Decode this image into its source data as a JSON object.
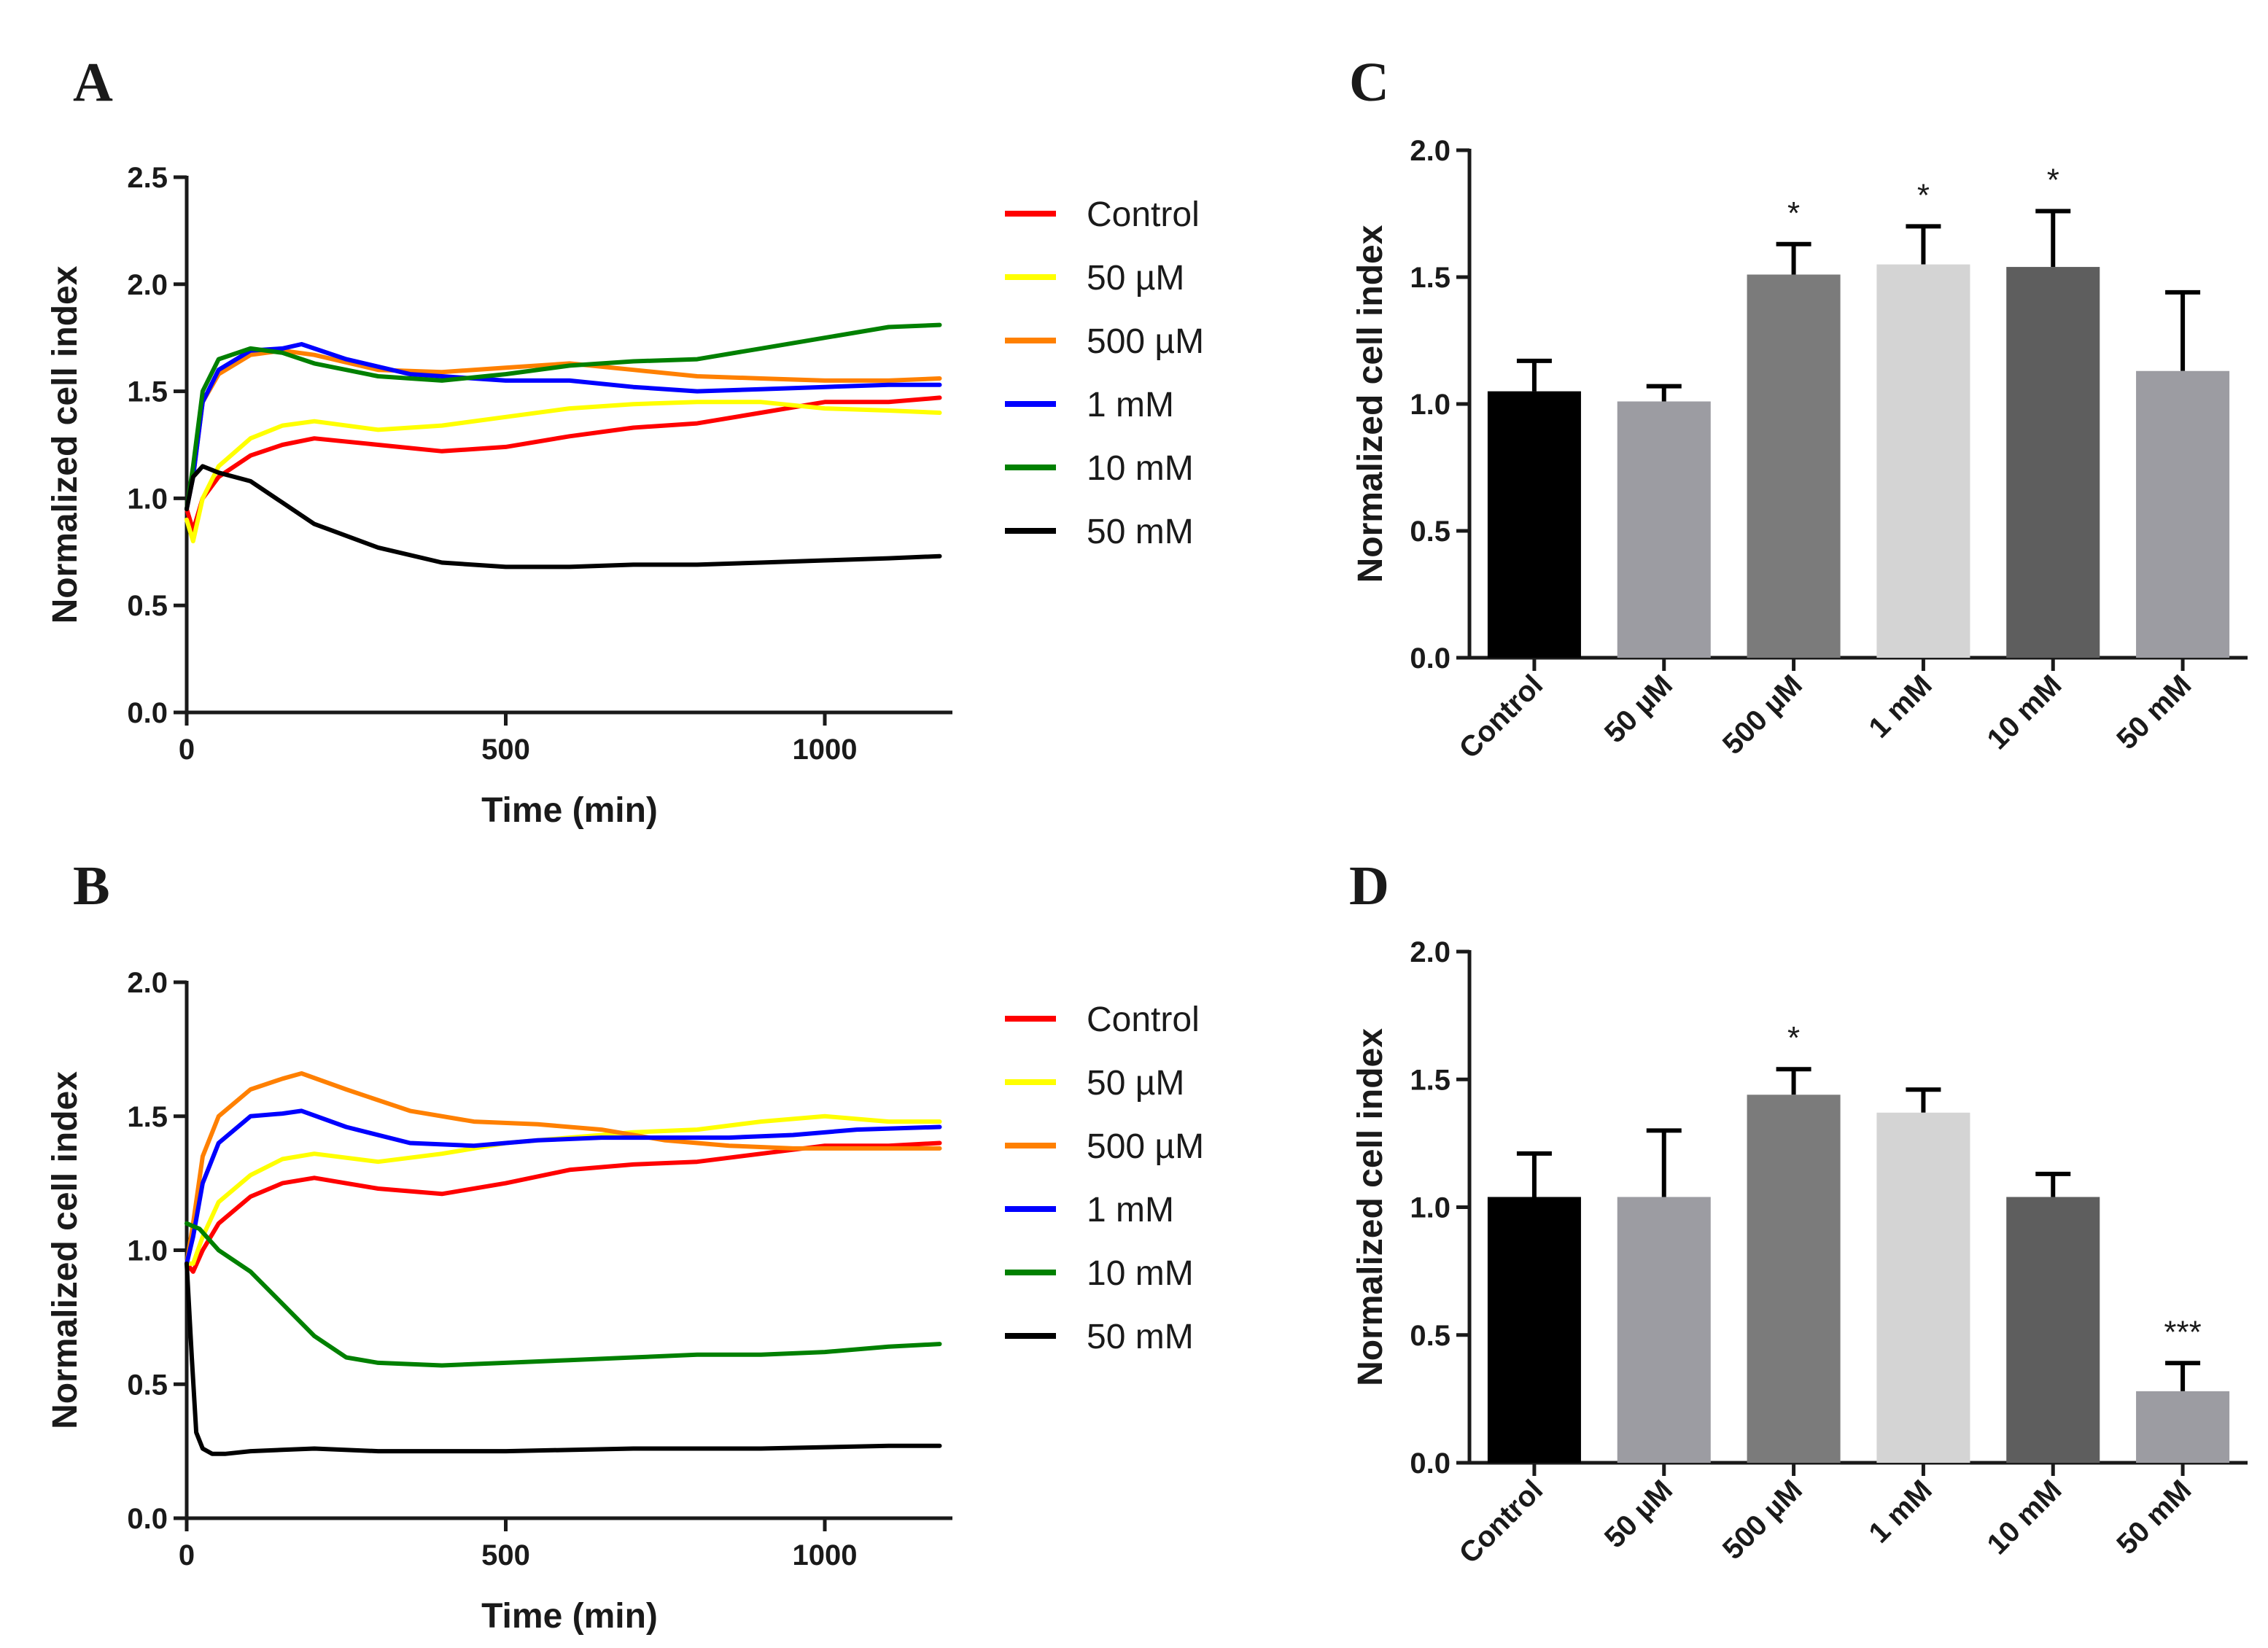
{
  "chart_data": [
    {
      "id": "A",
      "panel_label": "A",
      "type": "line",
      "xlabel": "Time (min)",
      "ylabel": "Normalized cell index",
      "xlim": [
        0,
        1200
      ],
      "ylim": [
        0,
        2.5
      ],
      "xticks": [
        0,
        500,
        1000
      ],
      "yticks": [
        0.0,
        0.5,
        1.0,
        1.5,
        2.0,
        2.5
      ],
      "legend": "right",
      "series": [
        {
          "name": "Control",
          "color": "#ff0000",
          "points": [
            [
              0,
              0.95
            ],
            [
              10,
              0.85
            ],
            [
              25,
              1.0
            ],
            [
              50,
              1.1
            ],
            [
              100,
              1.2
            ],
            [
              150,
              1.25
            ],
            [
              200,
              1.28
            ],
            [
              300,
              1.25
            ],
            [
              400,
              1.22
            ],
            [
              500,
              1.24
            ],
            [
              600,
              1.29
            ],
            [
              700,
              1.33
            ],
            [
              800,
              1.35
            ],
            [
              900,
              1.4
            ],
            [
              1000,
              1.45
            ],
            [
              1100,
              1.45
            ],
            [
              1180,
              1.47
            ]
          ]
        },
        {
          "name": "50 µM",
          "color": "#ffff00",
          "points": [
            [
              0,
              0.9
            ],
            [
              10,
              0.8
            ],
            [
              25,
              1.0
            ],
            [
              50,
              1.15
            ],
            [
              100,
              1.28
            ],
            [
              150,
              1.34
            ],
            [
              200,
              1.36
            ],
            [
              300,
              1.32
            ],
            [
              400,
              1.34
            ],
            [
              500,
              1.38
            ],
            [
              600,
              1.42
            ],
            [
              700,
              1.44
            ],
            [
              800,
              1.45
            ],
            [
              900,
              1.45
            ],
            [
              1000,
              1.42
            ],
            [
              1100,
              1.41
            ],
            [
              1180,
              1.4
            ]
          ]
        },
        {
          "name": "500 µM",
          "color": "#ff8000",
          "points": [
            [
              0,
              0.95
            ],
            [
              10,
              1.1
            ],
            [
              25,
              1.45
            ],
            [
              50,
              1.58
            ],
            [
              100,
              1.67
            ],
            [
              150,
              1.69
            ],
            [
              200,
              1.67
            ],
            [
              300,
              1.6
            ],
            [
              400,
              1.59
            ],
            [
              500,
              1.61
            ],
            [
              600,
              1.63
            ],
            [
              700,
              1.6
            ],
            [
              800,
              1.57
            ],
            [
              900,
              1.56
            ],
            [
              1000,
              1.55
            ],
            [
              1100,
              1.55
            ],
            [
              1180,
              1.56
            ]
          ]
        },
        {
          "name": "1 mM",
          "color": "#0000ff",
          "points": [
            [
              0,
              0.95
            ],
            [
              10,
              1.1
            ],
            [
              25,
              1.45
            ],
            [
              50,
              1.6
            ],
            [
              100,
              1.69
            ],
            [
              150,
              1.7
            ],
            [
              180,
              1.72
            ],
            [
              250,
              1.65
            ],
            [
              350,
              1.58
            ],
            [
              500,
              1.55
            ],
            [
              600,
              1.55
            ],
            [
              700,
              1.52
            ],
            [
              800,
              1.5
            ],
            [
              900,
              1.51
            ],
            [
              1000,
              1.52
            ],
            [
              1100,
              1.53
            ],
            [
              1180,
              1.53
            ]
          ]
        },
        {
          "name": "10 mM",
          "color": "#008000",
          "points": [
            [
              0,
              0.95
            ],
            [
              10,
              1.15
            ],
            [
              25,
              1.5
            ],
            [
              50,
              1.65
            ],
            [
              100,
              1.7
            ],
            [
              150,
              1.68
            ],
            [
              200,
              1.63
            ],
            [
              300,
              1.57
            ],
            [
              400,
              1.55
            ],
            [
              500,
              1.58
            ],
            [
              600,
              1.62
            ],
            [
              700,
              1.64
            ],
            [
              800,
              1.65
            ],
            [
              900,
              1.7
            ],
            [
              1000,
              1.75
            ],
            [
              1100,
              1.8
            ],
            [
              1180,
              1.81
            ]
          ]
        },
        {
          "name": "50 mM",
          "color": "#000000",
          "points": [
            [
              0,
              0.95
            ],
            [
              10,
              1.1
            ],
            [
              25,
              1.15
            ],
            [
              50,
              1.12
            ],
            [
              100,
              1.08
            ],
            [
              150,
              0.98
            ],
            [
              200,
              0.88
            ],
            [
              300,
              0.77
            ],
            [
              400,
              0.7
            ],
            [
              500,
              0.68
            ],
            [
              600,
              0.68
            ],
            [
              700,
              0.69
            ],
            [
              800,
              0.69
            ],
            [
              900,
              0.7
            ],
            [
              1000,
              0.71
            ],
            [
              1100,
              0.72
            ],
            [
              1180,
              0.73
            ]
          ]
        }
      ]
    },
    {
      "id": "B",
      "panel_label": "B",
      "type": "line",
      "xlabel": "Time (min)",
      "ylabel": "Normalized cell index",
      "xlim": [
        0,
        1200
      ],
      "ylim": [
        0,
        2.0
      ],
      "xticks": [
        0,
        500,
        1000
      ],
      "yticks": [
        0.0,
        0.5,
        1.0,
        1.5,
        2.0
      ],
      "legend": "right",
      "series": [
        {
          "name": "Control",
          "color": "#ff0000",
          "points": [
            [
              0,
              0.95
            ],
            [
              10,
              0.92
            ],
            [
              25,
              1.0
            ],
            [
              50,
              1.1
            ],
            [
              100,
              1.2
            ],
            [
              150,
              1.25
            ],
            [
              200,
              1.27
            ],
            [
              300,
              1.23
            ],
            [
              400,
              1.21
            ],
            [
              500,
              1.25
            ],
            [
              600,
              1.3
            ],
            [
              700,
              1.32
            ],
            [
              800,
              1.33
            ],
            [
              900,
              1.36
            ],
            [
              1000,
              1.39
            ],
            [
              1100,
              1.39
            ],
            [
              1180,
              1.4
            ]
          ]
        },
        {
          "name": "50 µM",
          "color": "#ffff00",
          "points": [
            [
              0,
              0.95
            ],
            [
              10,
              0.95
            ],
            [
              25,
              1.05
            ],
            [
              50,
              1.18
            ],
            [
              100,
              1.28
            ],
            [
              150,
              1.34
            ],
            [
              200,
              1.36
            ],
            [
              300,
              1.33
            ],
            [
              400,
              1.36
            ],
            [
              500,
              1.4
            ],
            [
              600,
              1.42
            ],
            [
              700,
              1.44
            ],
            [
              800,
              1.45
            ],
            [
              900,
              1.48
            ],
            [
              1000,
              1.5
            ],
            [
              1100,
              1.48
            ],
            [
              1180,
              1.48
            ]
          ]
        },
        {
          "name": "500 µM",
          "color": "#ff8000",
          "points": [
            [
              0,
              0.95
            ],
            [
              10,
              1.1
            ],
            [
              25,
              1.35
            ],
            [
              50,
              1.5
            ],
            [
              100,
              1.6
            ],
            [
              150,
              1.64
            ],
            [
              180,
              1.66
            ],
            [
              250,
              1.6
            ],
            [
              350,
              1.52
            ],
            [
              450,
              1.48
            ],
            [
              550,
              1.47
            ],
            [
              650,
              1.45
            ],
            [
              750,
              1.41
            ],
            [
              850,
              1.39
            ],
            [
              950,
              1.38
            ],
            [
              1050,
              1.38
            ],
            [
              1180,
              1.38
            ]
          ]
        },
        {
          "name": "1 mM",
          "color": "#0000ff",
          "points": [
            [
              0,
              0.95
            ],
            [
              10,
              1.05
            ],
            [
              25,
              1.25
            ],
            [
              50,
              1.4
            ],
            [
              100,
              1.5
            ],
            [
              150,
              1.51
            ],
            [
              180,
              1.52
            ],
            [
              250,
              1.46
            ],
            [
              350,
              1.4
            ],
            [
              450,
              1.39
            ],
            [
              550,
              1.41
            ],
            [
              650,
              1.42
            ],
            [
              750,
              1.42
            ],
            [
              850,
              1.42
            ],
            [
              950,
              1.43
            ],
            [
              1050,
              1.45
            ],
            [
              1180,
              1.46
            ]
          ]
        },
        {
          "name": "10 mM",
          "color": "#008000",
          "points": [
            [
              0,
              1.1
            ],
            [
              20,
              1.08
            ],
            [
              50,
              1.0
            ],
            [
              100,
              0.92
            ],
            [
              150,
              0.8
            ],
            [
              200,
              0.68
            ],
            [
              250,
              0.6
            ],
            [
              300,
              0.58
            ],
            [
              400,
              0.57
            ],
            [
              500,
              0.58
            ],
            [
              600,
              0.59
            ],
            [
              700,
              0.6
            ],
            [
              800,
              0.61
            ],
            [
              900,
              0.61
            ],
            [
              1000,
              0.62
            ],
            [
              1100,
              0.64
            ],
            [
              1180,
              0.65
            ]
          ]
        },
        {
          "name": "50 mM",
          "color": "#000000",
          "points": [
            [
              0,
              0.95
            ],
            [
              8,
              0.6
            ],
            [
              15,
              0.32
            ],
            [
              25,
              0.26
            ],
            [
              40,
              0.24
            ],
            [
              60,
              0.24
            ],
            [
              100,
              0.25
            ],
            [
              200,
              0.26
            ],
            [
              300,
              0.25
            ],
            [
              500,
              0.25
            ],
            [
              700,
              0.26
            ],
            [
              900,
              0.26
            ],
            [
              1100,
              0.27
            ],
            [
              1180,
              0.27
            ]
          ]
        }
      ]
    },
    {
      "id": "C",
      "panel_label": "C",
      "type": "bar",
      "ylabel": "Normalized cell index",
      "ylim": [
        0,
        2.0
      ],
      "yticks": [
        0.0,
        0.5,
        1.0,
        1.5,
        2.0
      ],
      "categories": [
        "Control",
        "50 µM",
        "500 µM",
        "1 mM",
        "10 mM",
        "50 mM"
      ],
      "values": [
        1.05,
        1.01,
        1.51,
        1.55,
        1.54,
        1.13
      ],
      "errors": [
        0.12,
        0.06,
        0.12,
        0.15,
        0.22,
        0.31
      ],
      "significance": [
        "",
        "",
        "*",
        "*",
        "*",
        ""
      ],
      "colors": [
        "#000000",
        "#9c9ca2",
        "#7b7b7b",
        "#d4d4d4",
        "#5e5e5e",
        "#9c9ca2"
      ]
    },
    {
      "id": "D",
      "panel_label": "D",
      "type": "bar",
      "ylabel": "Normalized cell index",
      "ylim": [
        0,
        2.0
      ],
      "yticks": [
        0.0,
        0.5,
        1.0,
        1.5,
        2.0
      ],
      "categories": [
        "Control",
        "50 µM",
        "500 µM",
        "1 mM",
        "10 mM",
        "50 mM"
      ],
      "values": [
        1.04,
        1.04,
        1.44,
        1.37,
        1.04,
        0.28
      ],
      "errors": [
        0.17,
        0.26,
        0.1,
        0.09,
        0.09,
        0.11
      ],
      "significance": [
        "",
        "",
        "*",
        "",
        "",
        "***"
      ],
      "colors": [
        "#000000",
        "#9c9ca2",
        "#7b7b7b",
        "#d4d4d4",
        "#5e5e5e",
        "#9c9ca2"
      ]
    }
  ]
}
